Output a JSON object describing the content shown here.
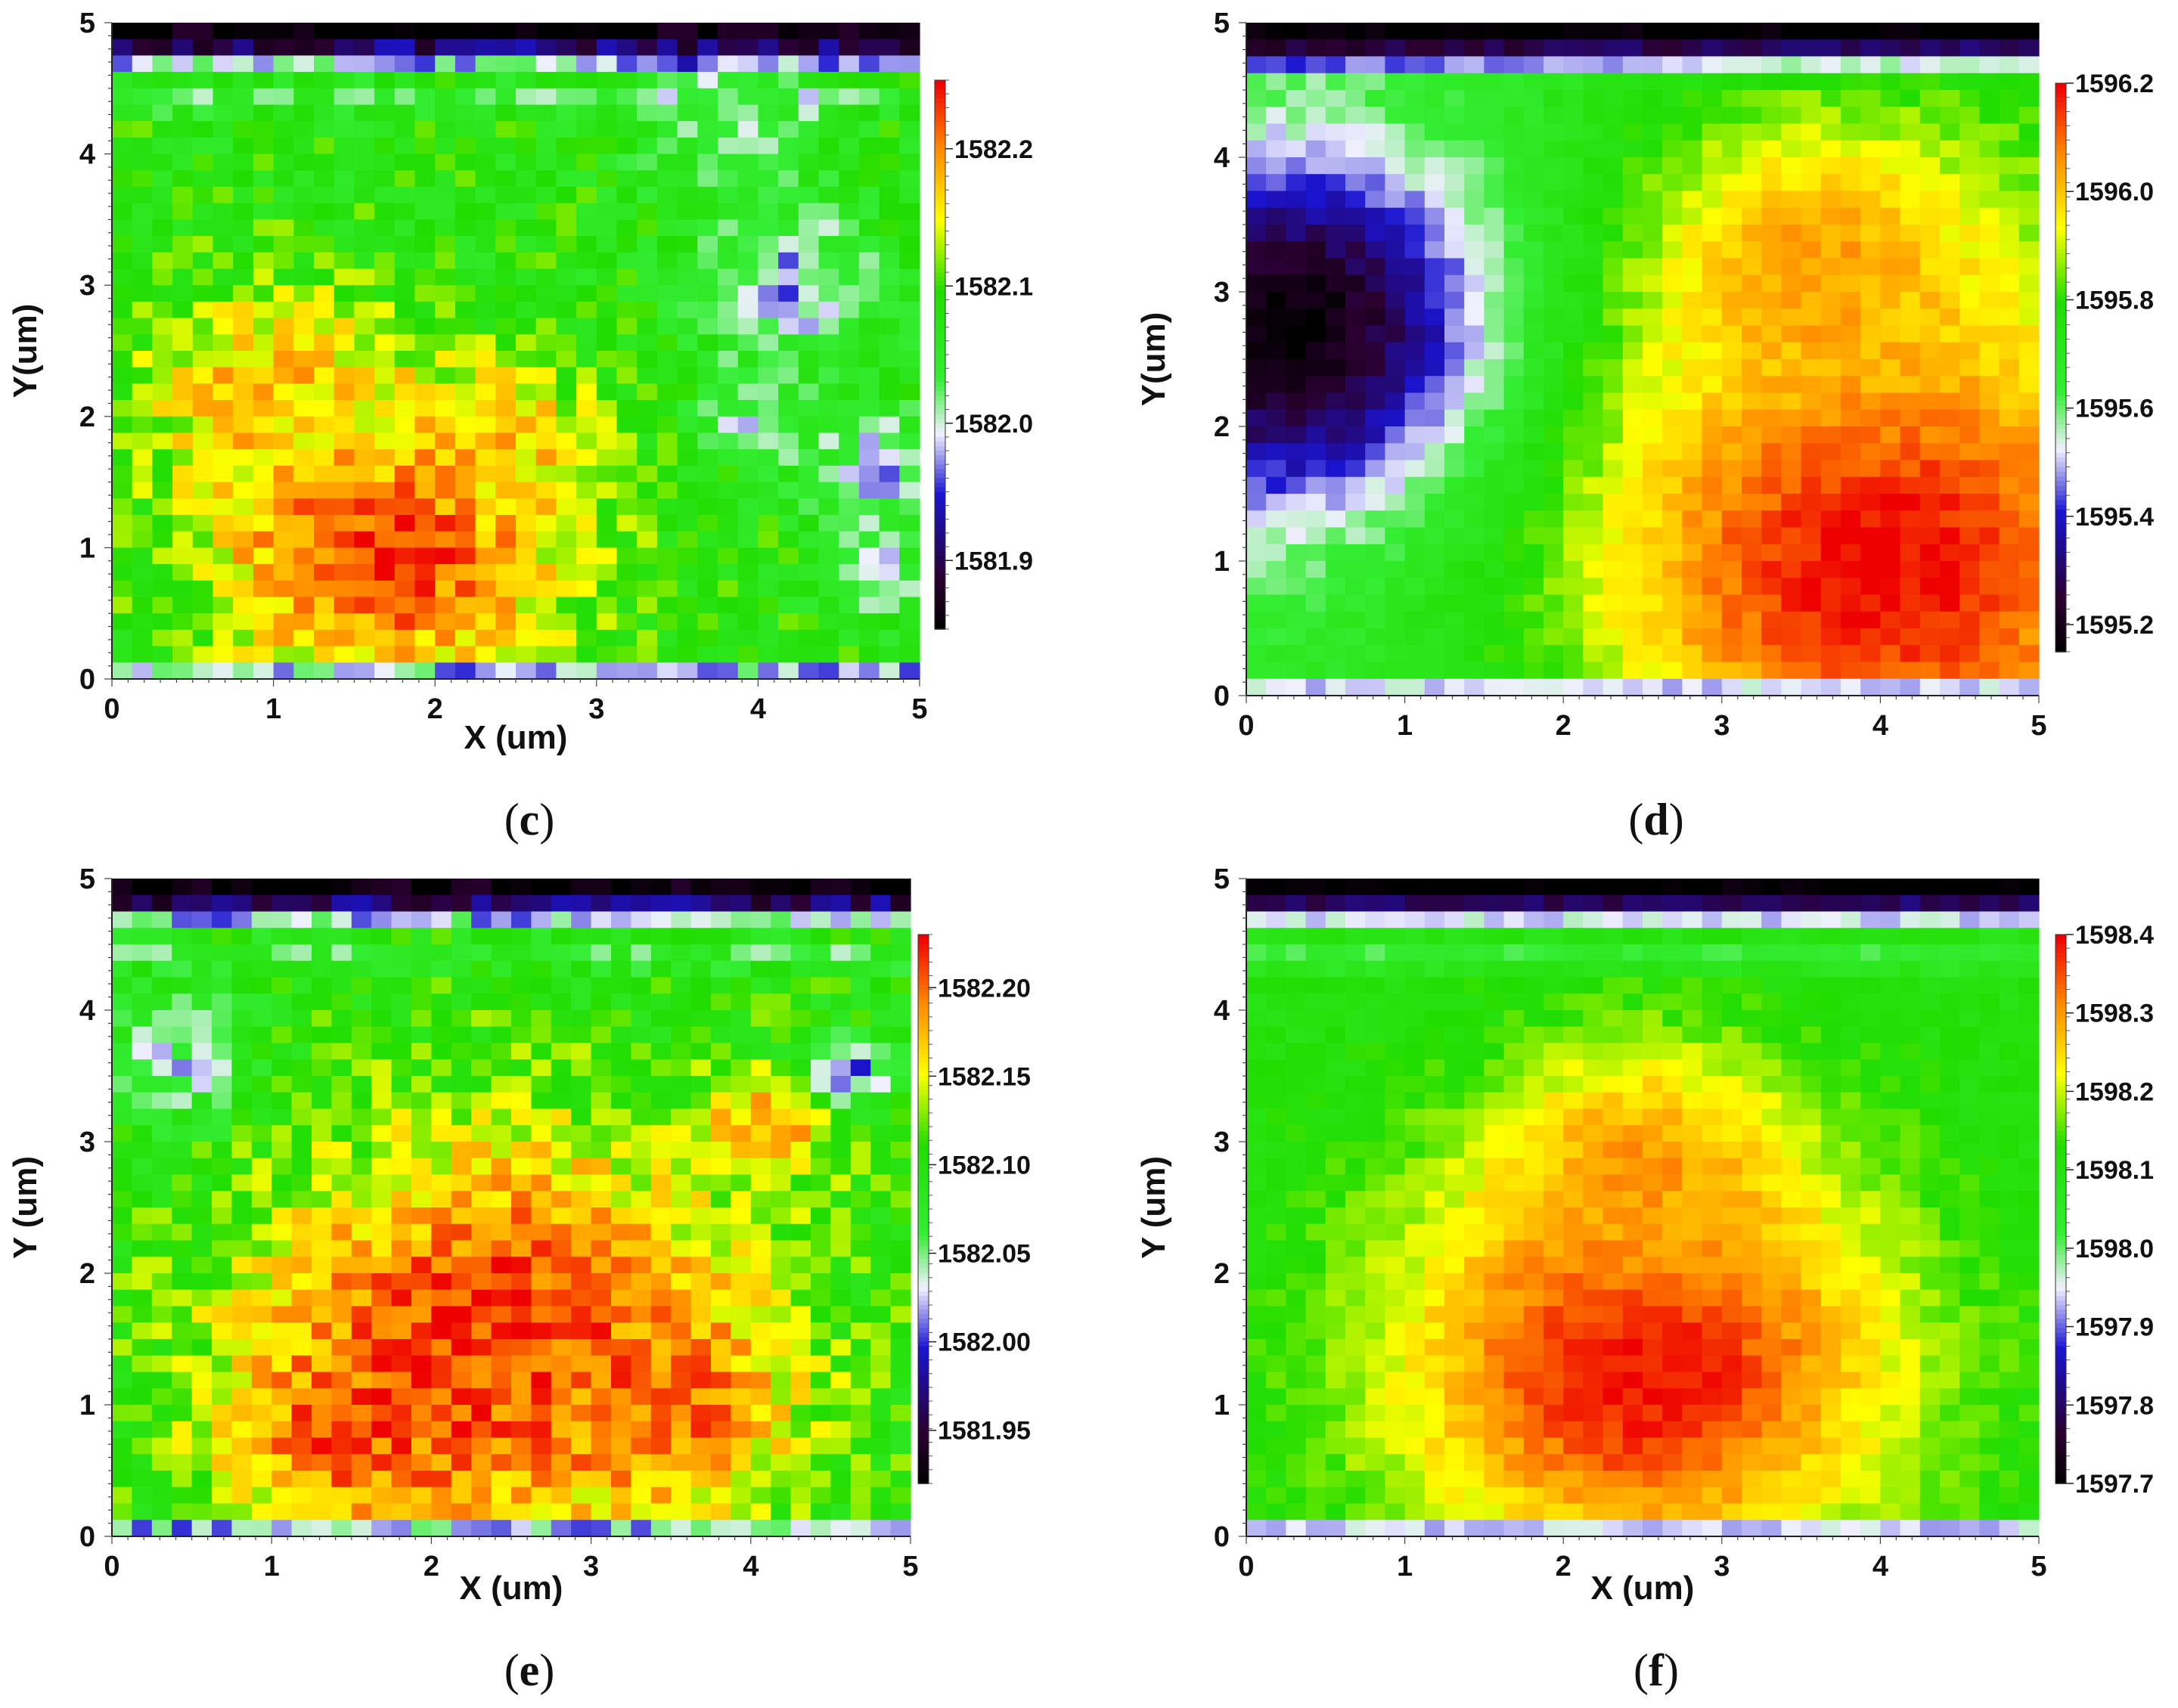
{
  "chart_data": [
    {
      "type": "heatmap",
      "panel": "c",
      "caption": "c",
      "xlabel": "X (um)",
      "ylabel": "Y(um)",
      "xlim": [
        0,
        5
      ],
      "ylim": [
        0,
        5
      ],
      "xticks": [
        "0",
        "1",
        "2",
        "3",
        "4",
        "5"
      ],
      "yticks": [
        "0",
        "1",
        "2",
        "3",
        "4",
        "5"
      ],
      "colorbar": {
        "min": 1581.85,
        "max": 1582.25,
        "ticks": [
          1581.9,
          1582.0,
          1582.1,
          1582.2
        ],
        "tick_labels": [
          "1581.9",
          "1582.0",
          "1582.1",
          "1582.2"
        ]
      },
      "field": "scattered hot region lower-left (~1582.2), green mid (~1582.1), blue spots right, dark band at top edge (~1581.85)",
      "blobs": [
        {
          "x": 1.7,
          "y": 1.0,
          "value": 1582.24,
          "r": 1.1
        },
        {
          "x": 1.0,
          "y": 2.2,
          "value": 1582.18,
          "r": 0.8
        },
        {
          "x": 2.4,
          "y": 1.8,
          "value": 1582.17,
          "r": 0.6
        },
        {
          "x": 4.2,
          "y": 3.0,
          "value": 1581.98,
          "r": 0.55
        },
        {
          "x": 4.8,
          "y": 1.6,
          "value": 1581.99,
          "r": 0.45
        },
        {
          "x": 3.8,
          "y": 4.3,
          "value": 1582.02,
          "r": 0.6
        },
        {
          "x": 4.0,
          "y": 2.0,
          "value": 1582.0,
          "r": 0.35
        },
        {
          "x": 4.7,
          "y": 0.8,
          "value": 1581.99,
          "r": 0.3
        }
      ]
    },
    {
      "type": "heatmap",
      "panel": "d",
      "caption": "d",
      "xlabel": "",
      "ylabel": "Y(um)",
      "xlim": [
        0,
        5
      ],
      "ylim": [
        0,
        5
      ],
      "xticks": [
        "0",
        "1",
        "2",
        "3",
        "4",
        "5"
      ],
      "yticks": [
        "0",
        "1",
        "2",
        "3",
        "4",
        "5"
      ],
      "colorbar": {
        "min": 1595.15,
        "max": 1596.2,
        "ticks": [
          1595.2,
          1595.4,
          1595.6,
          1595.8,
          1596.0,
          1596.2
        ],
        "tick_labels": [
          "1595.2",
          "1595.4",
          "1595.6",
          "1595.8",
          "1596.0",
          "1596.2"
        ]
      },
      "field": "dark minimum at left (x~0.3, y~2.7), red maximum lower-right, green band between",
      "blobs": [
        {
          "x": 0.3,
          "y": 2.7,
          "value": 1595.15,
          "r": 1.3
        },
        {
          "x": 4.0,
          "y": 1.0,
          "value": 1596.2,
          "r": 1.9
        },
        {
          "x": 3.6,
          "y": 3.2,
          "value": 1596.05,
          "r": 1.1
        }
      ]
    },
    {
      "type": "heatmap",
      "panel": "e",
      "caption": "e",
      "xlabel": "X (um)",
      "ylabel": "Y (um)",
      "xlim": [
        0,
        5
      ],
      "ylim": [
        0,
        5
      ],
      "xticks": [
        "0",
        "1",
        "2",
        "3",
        "4",
        "5"
      ],
      "yticks": [
        "0",
        "1",
        "2",
        "3",
        "4",
        "5"
      ],
      "colorbar": {
        "min": 1581.92,
        "max": 1582.23,
        "ticks": [
          1581.95,
          1582.0,
          1582.05,
          1582.1,
          1582.15,
          1582.2
        ],
        "tick_labels": [
          "1581.95",
          "1582.00",
          "1582.05",
          "1582.10",
          "1582.15",
          "1582.20"
        ]
      },
      "field": "broad hot dome centered x~2.4, y~1.5; green surround; blue/dark band at top",
      "blobs": [
        {
          "x": 2.4,
          "y": 1.5,
          "value": 1582.22,
          "r": 1.6
        },
        {
          "x": 1.5,
          "y": 0.8,
          "value": 1582.21,
          "r": 0.7
        },
        {
          "x": 3.5,
          "y": 1.0,
          "value": 1582.2,
          "r": 0.7
        },
        {
          "x": 4.1,
          "y": 3.1,
          "value": 1582.19,
          "r": 0.4
        },
        {
          "x": 4.6,
          "y": 3.5,
          "value": 1582.0,
          "r": 0.25
        },
        {
          "x": 0.4,
          "y": 3.6,
          "value": 1582.04,
          "r": 0.5
        }
      ]
    },
    {
      "type": "heatmap",
      "panel": "f",
      "caption": "f",
      "xlabel": "X (um)",
      "ylabel": "Y (um)",
      "xlim": [
        0,
        5
      ],
      "ylim": [
        0,
        5
      ],
      "xticks": [
        "0",
        "1",
        "2",
        "3",
        "4",
        "5"
      ],
      "yticks": [
        "0",
        "1",
        "2",
        "3",
        "4",
        "5"
      ],
      "colorbar": {
        "min": 1597.7,
        "max": 1598.4,
        "ticks": [
          1597.7,
          1597.8,
          1597.9,
          1598.0,
          1598.1,
          1598.2,
          1598.3,
          1598.4
        ],
        "tick_labels": [
          "1597.7",
          "1597.8",
          "1597.9",
          "1598.0",
          "1598.1",
          "1598.2",
          "1598.3",
          "1598.4"
        ]
      },
      "field": "hot dome centered x~2.5, y~1.2; green elsewhere; dark band at top",
      "blobs": [
        {
          "x": 2.5,
          "y": 1.3,
          "value": 1598.4,
          "r": 1.6
        },
        {
          "x": 2.5,
          "y": 2.8,
          "value": 1598.3,
          "r": 0.9
        }
      ]
    }
  ]
}
